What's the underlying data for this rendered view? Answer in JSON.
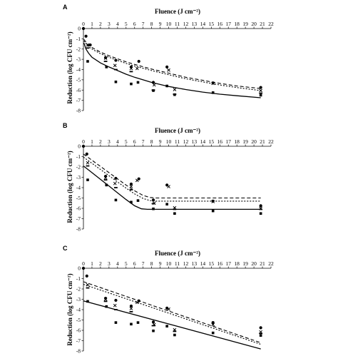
{
  "chart_data": [
    {
      "type": "scatter",
      "panel_label": "A",
      "xlabel": "Fluence (J cm⁻²)",
      "ylabel": "Reduction (log CFU cm⁻²)",
      "xlim": [
        0,
        22
      ],
      "ylim": [
        -8,
        0
      ],
      "x_ticks": [
        "0",
        "1",
        "2",
        "3",
        "4",
        "5",
        "6",
        "7",
        "8",
        "9",
        "10",
        "11",
        "12",
        "13",
        "14",
        "15",
        "16",
        "17",
        "18",
        "19",
        "20",
        "21",
        "22"
      ],
      "y_ticks": [
        "0",
        "-1",
        "-2",
        "-3",
        "-4",
        "-5",
        "-6",
        "-7",
        "-8"
      ],
      "series": [
        {
          "marker": "circle",
          "points": [
            [
              0,
              0
            ],
            [
              0.3,
              -0.75
            ],
            [
              0.8,
              -1.6
            ],
            [
              2.6,
              -2.85
            ],
            [
              3.8,
              -3.1
            ],
            [
              5.6,
              -3.75
            ],
            [
              6.5,
              -3.2
            ],
            [
              8.2,
              -5.25
            ],
            [
              9.8,
              -3.75
            ],
            [
              15.2,
              -5.3
            ],
            [
              20.8,
              -5.75
            ]
          ]
        },
        {
          "marker": "cross",
          "points": [
            [
              0.5,
              -1.6
            ],
            [
              2.6,
              -2.9
            ],
            [
              3.7,
              -3.6
            ],
            [
              5.6,
              -3.9
            ],
            [
              6.3,
              -3.9
            ],
            [
              8.3,
              -5.5
            ],
            [
              10,
              -4.05
            ],
            [
              10.7,
              -5.95
            ],
            [
              15.2,
              -5.35
            ],
            [
              20.8,
              -6.05
            ]
          ]
        },
        {
          "marker": "dash",
          "points": [
            [
              0.5,
              -1.9
            ],
            [
              2.6,
              -3.2
            ],
            [
              3.8,
              -4.0
            ],
            [
              5.6,
              -4.2
            ],
            [
              8.2,
              -6.0
            ],
            [
              10.7,
              -6.4
            ],
            [
              20.8,
              -6.3
            ]
          ]
        },
        {
          "marker": "square",
          "points": [
            [
              0.5,
              -3.2
            ],
            [
              2.7,
              -3.75
            ],
            [
              3.8,
              -5.2
            ],
            [
              5.6,
              -5.4
            ],
            [
              6.4,
              -5.25
            ],
            [
              8.2,
              -6.05
            ],
            [
              9.8,
              -5.6
            ],
            [
              10.7,
              -6.45
            ],
            [
              15.2,
              -6.25
            ],
            [
              20.8,
              -6.5
            ]
          ]
        }
      ],
      "fits": [
        {
          "style": "dashed",
          "points": [
            [
              0.05,
              -1.05
            ],
            [
              0.5,
              -1.55
            ],
            [
              1,
              -1.85
            ],
            [
              2,
              -2.3
            ],
            [
              3,
              -2.65
            ],
            [
              4,
              -2.95
            ],
            [
              5,
              -3.25
            ],
            [
              6,
              -3.5
            ],
            [
              8,
              -3.95
            ],
            [
              10,
              -4.35
            ],
            [
              12,
              -4.75
            ],
            [
              14,
              -5.05
            ],
            [
              16,
              -5.35
            ],
            [
              18,
              -5.6
            ],
            [
              20.8,
              -5.85
            ]
          ]
        },
        {
          "style": "dotted",
          "points": [
            [
              0.05,
              -1.2
            ],
            [
              0.5,
              -1.7
            ],
            [
              1,
              -2.0
            ],
            [
              2,
              -2.45
            ],
            [
              3,
              -2.8
            ],
            [
              4,
              -3.1
            ],
            [
              5,
              -3.4
            ],
            [
              6,
              -3.65
            ],
            [
              8,
              -4.1
            ],
            [
              10,
              -4.5
            ],
            [
              12,
              -4.9
            ],
            [
              14,
              -5.2
            ],
            [
              16,
              -5.5
            ],
            [
              18,
              -5.75
            ],
            [
              20.8,
              -6.05
            ]
          ]
        },
        {
          "style": "solid",
          "points": [
            [
              0.05,
              -1.4
            ],
            [
              0.3,
              -2.0
            ],
            [
              0.6,
              -2.4
            ],
            [
              1,
              -2.8
            ],
            [
              2,
              -3.35
            ],
            [
              3,
              -3.75
            ],
            [
              4,
              -4.1
            ],
            [
              5,
              -4.45
            ],
            [
              6,
              -4.75
            ],
            [
              8,
              -5.25
            ],
            [
              10,
              -5.65
            ],
            [
              12,
              -5.95
            ],
            [
              14,
              -6.2
            ],
            [
              16,
              -6.4
            ],
            [
              18,
              -6.55
            ],
            [
              20.8,
              -6.75
            ]
          ]
        }
      ]
    },
    {
      "type": "scatter",
      "panel_label": "B",
      "xlabel": "Fluence (J cm⁻²)",
      "ylabel": "Reduction (log CFU cm⁻²)",
      "xlim": [
        0,
        22
      ],
      "ylim": [
        -8,
        0
      ],
      "x_ticks": [
        "0",
        "1",
        "2",
        "3",
        "4",
        "5",
        "6",
        "7",
        "8",
        "9",
        "10",
        "11",
        "12",
        "13",
        "14",
        "15",
        "16",
        "17",
        "18",
        "19",
        "20",
        "21",
        "22"
      ],
      "y_ticks": [
        "0",
        "-1",
        "-2",
        "-3",
        "-4",
        "-5",
        "-6",
        "-7",
        "-8"
      ],
      "series": [
        {
          "marker": "circle",
          "points": [
            [
              0,
              0
            ],
            [
              0.4,
              -0.75
            ],
            [
              2.6,
              -2.9
            ],
            [
              3.8,
              -3.1
            ],
            [
              5.6,
              -3.65
            ],
            [
              6.5,
              -3.15
            ],
            [
              8.2,
              -5.2
            ],
            [
              9.8,
              -3.75
            ],
            [
              15.2,
              -5.3
            ],
            [
              20.8,
              -5.75
            ]
          ]
        },
        {
          "marker": "cross",
          "points": [
            [
              0.5,
              -1.6
            ],
            [
              2.6,
              -3.05
            ],
            [
              3.7,
              -3.6
            ],
            [
              5.6,
              -3.9
            ],
            [
              6.3,
              -3.3
            ],
            [
              8.3,
              -5.5
            ],
            [
              10,
              -3.9
            ],
            [
              10.7,
              -5.95
            ],
            [
              15.2,
              -5.35
            ],
            [
              20.8,
              -6.0
            ]
          ]
        },
        {
          "marker": "dash",
          "points": [
            [
              0.5,
              -1.9
            ],
            [
              2.6,
              -3.25
            ],
            [
              3.8,
              -4.0
            ],
            [
              5.6,
              -4.2
            ],
            [
              8.2,
              -5.55
            ],
            [
              10.7,
              -6.1
            ],
            [
              20.8,
              -6.1
            ]
          ]
        },
        {
          "marker": "square",
          "points": [
            [
              0.5,
              -3.25
            ],
            [
              2.7,
              -3.75
            ],
            [
              3.8,
              -5.2
            ],
            [
              5.6,
              -5.4
            ],
            [
              6.4,
              -5.25
            ],
            [
              8.2,
              -6.05
            ],
            [
              9.8,
              -5.6
            ],
            [
              10.7,
              -6.5
            ],
            [
              15.2,
              -6.25
            ],
            [
              20.8,
              -6.5
            ]
          ]
        }
      ],
      "fits": [
        {
          "style": "dashed",
          "points": [
            [
              0,
              -0.75
            ],
            [
              1,
              -1.35
            ],
            [
              2,
              -1.95
            ],
            [
              3,
              -2.55
            ],
            [
              4,
              -3.15
            ],
            [
              5,
              -3.75
            ],
            [
              6,
              -4.3
            ],
            [
              7,
              -4.75
            ],
            [
              7.8,
              -4.95
            ],
            [
              8.5,
              -5.0
            ],
            [
              20.8,
              -5.0
            ]
          ]
        },
        {
          "style": "dotted",
          "points": [
            [
              0,
              -1.05
            ],
            [
              1,
              -1.65
            ],
            [
              2,
              -2.25
            ],
            [
              3,
              -2.85
            ],
            [
              4,
              -3.45
            ],
            [
              5,
              -4.05
            ],
            [
              6,
              -4.6
            ],
            [
              7,
              -5.05
            ],
            [
              7.8,
              -5.25
            ],
            [
              8.5,
              -5.3
            ],
            [
              20.8,
              -5.3
            ]
          ]
        },
        {
          "style": "solid",
          "points": [
            [
              0,
              -1.9
            ],
            [
              1,
              -2.55
            ],
            [
              2,
              -3.2
            ],
            [
              3,
              -3.85
            ],
            [
              4,
              -4.5
            ],
            [
              5,
              -5.15
            ],
            [
              6,
              -5.75
            ],
            [
              6.8,
              -6.05
            ],
            [
              7.5,
              -6.1
            ],
            [
              20.8,
              -6.1
            ]
          ]
        }
      ]
    },
    {
      "type": "scatter",
      "panel_label": "C",
      "xlabel": "Fluence (J cm⁻²)",
      "ylabel": "Reduction (log CFU cm⁻²)",
      "xlim": [
        0,
        22
      ],
      "ylim": [
        -8,
        0
      ],
      "x_ticks": [
        "0",
        "1",
        "2",
        "3",
        "4",
        "5",
        "6",
        "7",
        "8",
        "9",
        "10",
        "11",
        "12",
        "13",
        "14",
        "15",
        "16",
        "17",
        "18",
        "19",
        "20",
        "21",
        "22"
      ],
      "y_ticks": [
        "0",
        "-1",
        "-2",
        "-3",
        "-4",
        "-5",
        "-6",
        "-7",
        "-8"
      ],
      "series": [
        {
          "marker": "circle",
          "points": [
            [
              0,
              0
            ],
            [
              0.4,
              -0.75
            ],
            [
              2.6,
              -2.9
            ],
            [
              3.8,
              -3.1
            ],
            [
              5.6,
              -3.65
            ],
            [
              6.5,
              -3.15
            ],
            [
              8.2,
              -5.2
            ],
            [
              9.8,
              -3.85
            ],
            [
              15.2,
              -5.25
            ],
            [
              20.8,
              -5.75
            ]
          ]
        },
        {
          "marker": "cross",
          "points": [
            [
              0.5,
              -1.6
            ],
            [
              2.6,
              -3.0
            ],
            [
              3.7,
              -3.6
            ],
            [
              5.6,
              -3.9
            ],
            [
              6.3,
              -3.3
            ],
            [
              8.3,
              -5.45
            ],
            [
              10,
              -3.95
            ],
            [
              10.7,
              -5.95
            ],
            [
              15.2,
              -5.45
            ],
            [
              20.8,
              -6.15
            ]
          ]
        },
        {
          "marker": "dash",
          "points": [
            [
              0.5,
              -1.9
            ],
            [
              2.6,
              -3.2
            ],
            [
              3.8,
              -4.0
            ],
            [
              5.6,
              -4.2
            ],
            [
              8.2,
              -5.55
            ],
            [
              10.7,
              -6.1
            ],
            [
              20.8,
              -6.3
            ]
          ]
        },
        {
          "marker": "square",
          "points": [
            [
              0.5,
              -3.2
            ],
            [
              2.7,
              -3.7
            ],
            [
              3.8,
              -5.25
            ],
            [
              5.6,
              -5.4
            ],
            [
              6.4,
              -5.25
            ],
            [
              8.2,
              -6.05
            ],
            [
              9.8,
              -5.6
            ],
            [
              10.7,
              -6.45
            ],
            [
              15.2,
              -6.25
            ],
            [
              20.8,
              -6.5
            ]
          ]
        }
      ],
      "fits": [
        {
          "style": "dashed",
          "points": [
            [
              0,
              -1.3
            ],
            [
              20.8,
              -7.2
            ]
          ]
        },
        {
          "style": "dotted",
          "points": [
            [
              0,
              -1.55
            ],
            [
              20.8,
              -7.35
            ]
          ]
        },
        {
          "style": "solid",
          "points": [
            [
              0,
              -3.15
            ],
            [
              20.8,
              -7.8
            ]
          ]
        }
      ]
    }
  ]
}
